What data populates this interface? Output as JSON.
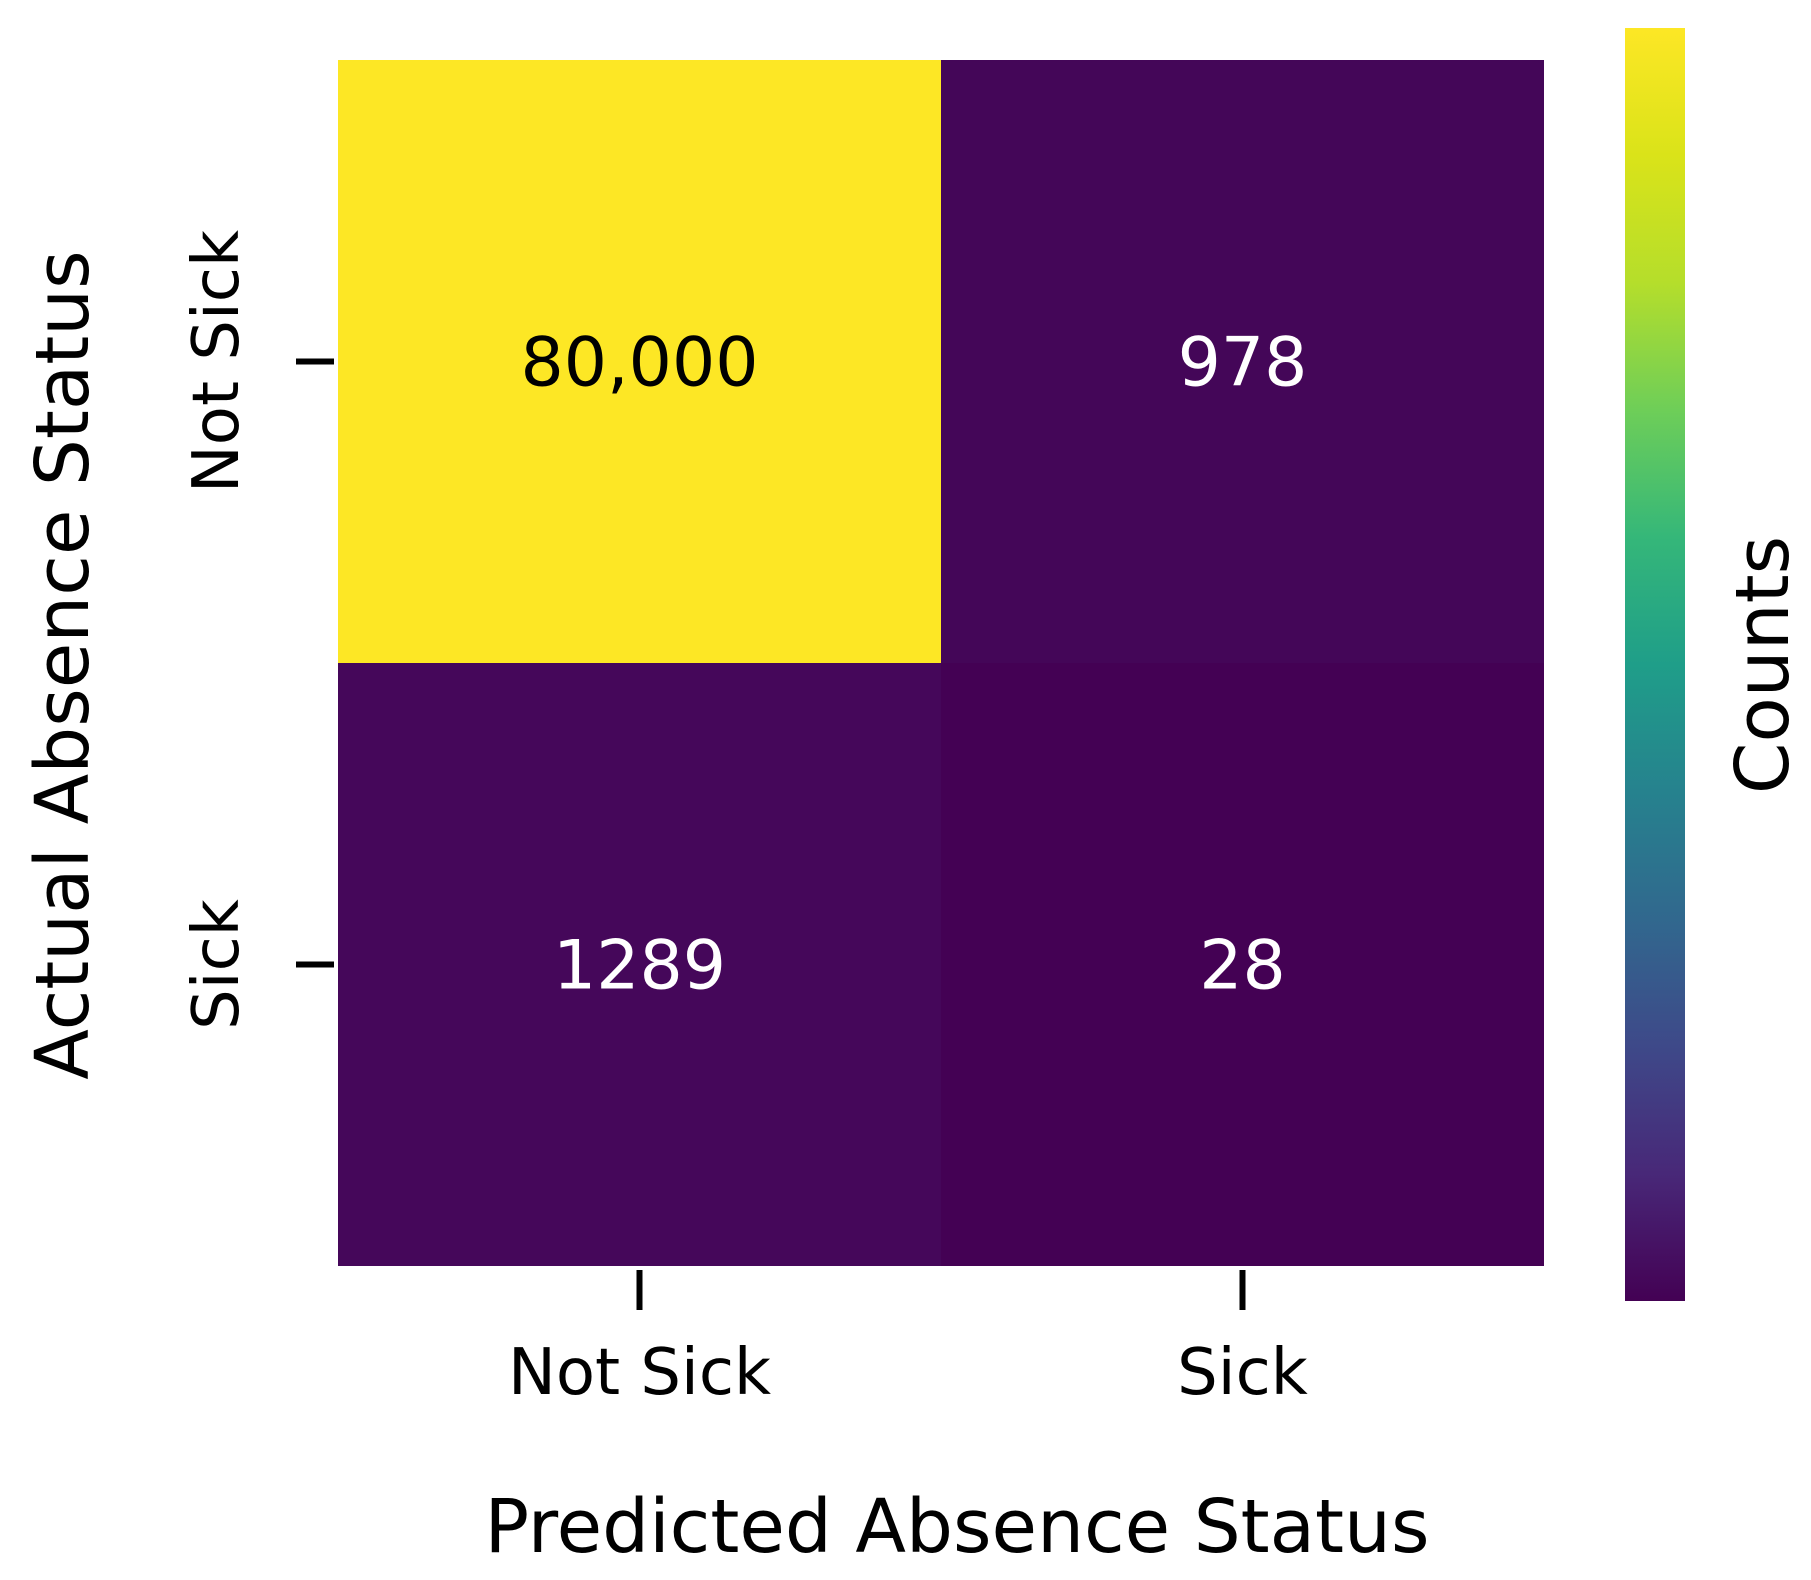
{
  "chart_data": {
    "type": "heatmap",
    "title": "",
    "xlabel": "Predicted Absence Status",
    "ylabel": "Actual Absence Status",
    "x_categories": [
      "Not Sick",
      "Sick"
    ],
    "y_categories": [
      "Not Sick",
      "Sick"
    ],
    "values": [
      [
        80000,
        978
      ],
      [
        1289,
        28
      ]
    ],
    "cell_labels": [
      [
        "80,000",
        "978"
      ],
      [
        "1289",
        "28"
      ]
    ],
    "colorbar": {
      "label": "Counts",
      "colormap": "viridis",
      "range": [
        28,
        80000
      ]
    },
    "colors": {
      "low": "#440154",
      "high": "#fde725",
      "text_on_dark": "#ffffff",
      "text_on_light": "#000000"
    }
  }
}
